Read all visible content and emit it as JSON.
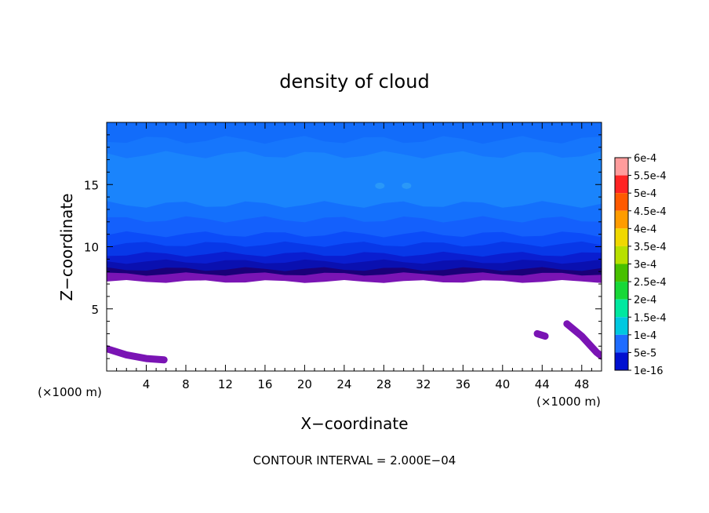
{
  "chart_data": {
    "type": "heatmap",
    "title": "density of cloud",
    "xlabel": "X−coordinate",
    "ylabel": "Z−coordinate",
    "x_unit_left": "(×1000 m)",
    "x_unit_right": "(×1000 m)",
    "footer": "CONTOUR INTERVAL = 2.000E−04",
    "xlim": [
      0,
      50
    ],
    "ylim": [
      0,
      20
    ],
    "xticks": [
      4,
      8,
      12,
      16,
      20,
      24,
      28,
      32,
      36,
      40,
      44,
      48
    ],
    "xtick_labels": [
      "4",
      "8",
      "12",
      "16",
      "20",
      "24",
      "28",
      "32",
      "36",
      "40",
      "44",
      "48"
    ],
    "yticks": [
      5,
      10,
      15
    ],
    "ytick_labels": [
      "5",
      "10",
      "15"
    ],
    "colorbar": {
      "labels": [
        "6e-4",
        "5.5e-4",
        "5e-4",
        "4.5e-4",
        "4e-4",
        "3.5e-4",
        "3e-4",
        "2.5e-4",
        "2e-4",
        "1.5e-4",
        "1e-4",
        "5e-5",
        "1e-16"
      ],
      "colors": [
        "#ff9c9c",
        "#ff2424",
        "#ff5a00",
        "#ff9c00",
        "#f0d800",
        "#b8e000",
        "#48c000",
        "#18d838",
        "#00e8a0",
        "#00c8e0",
        "#1e6cff",
        "#0010d0",
        "#7a14b4"
      ]
    },
    "bands": [
      {
        "z0": 7.2,
        "z1": 7.8,
        "value": 5e-05,
        "color": "#7a14b4"
      },
      {
        "z0": 7.8,
        "z1": 8.2,
        "value": 5e-05,
        "color": "#1a0078"
      },
      {
        "z0": 8.2,
        "z1": 8.8,
        "value": 5e-05,
        "color": "#0a10b0"
      },
      {
        "z0": 8.8,
        "z1": 9.4,
        "value": 6e-05,
        "color": "#0a1ed0"
      },
      {
        "z0": 9.4,
        "z1": 10.2,
        "value": 8e-05,
        "color": "#0838e8"
      },
      {
        "z0": 10.2,
        "z1": 11.0,
        "value": 9e-05,
        "color": "#0c4cf8"
      },
      {
        "z0": 11.0,
        "z1": 12.2,
        "value": 0.0001,
        "color": "#1460fc"
      },
      {
        "z0": 12.2,
        "z1": 13.4,
        "value": 0.00011,
        "color": "#1470fc"
      },
      {
        "z0": 13.4,
        "z1": 17.4,
        "value": 0.00013,
        "color": "#1a84fc"
      },
      {
        "z0": 17.4,
        "z1": 18.6,
        "value": 0.00012,
        "color": "#1676fc"
      },
      {
        "z0": 18.6,
        "z1": 20.0,
        "value": 0.00011,
        "color": "#126cfa"
      }
    ],
    "patches": [
      {
        "x": 27.6,
        "z": 14.9,
        "value": 0.00015,
        "color": "#2a98f8"
      },
      {
        "x": 30.3,
        "z": 14.9,
        "value": 0.00015,
        "color": "#2a98f8"
      }
    ],
    "low_cloud_streaks": [
      {
        "color": "#7a14b4",
        "points": [
          [
            0,
            1.8
          ],
          [
            2,
            1.3
          ],
          [
            4,
            1.0
          ],
          [
            5.8,
            0.9
          ]
        ]
      },
      {
        "color": "#7a14b4",
        "points": [
          [
            43.5,
            3.0
          ],
          [
            44.3,
            2.8
          ]
        ]
      },
      {
        "color": "#7a14b4",
        "points": [
          [
            46.5,
            3.8
          ],
          [
            48,
            2.8
          ],
          [
            49.5,
            1.5
          ],
          [
            50,
            1.2
          ]
        ]
      }
    ]
  }
}
